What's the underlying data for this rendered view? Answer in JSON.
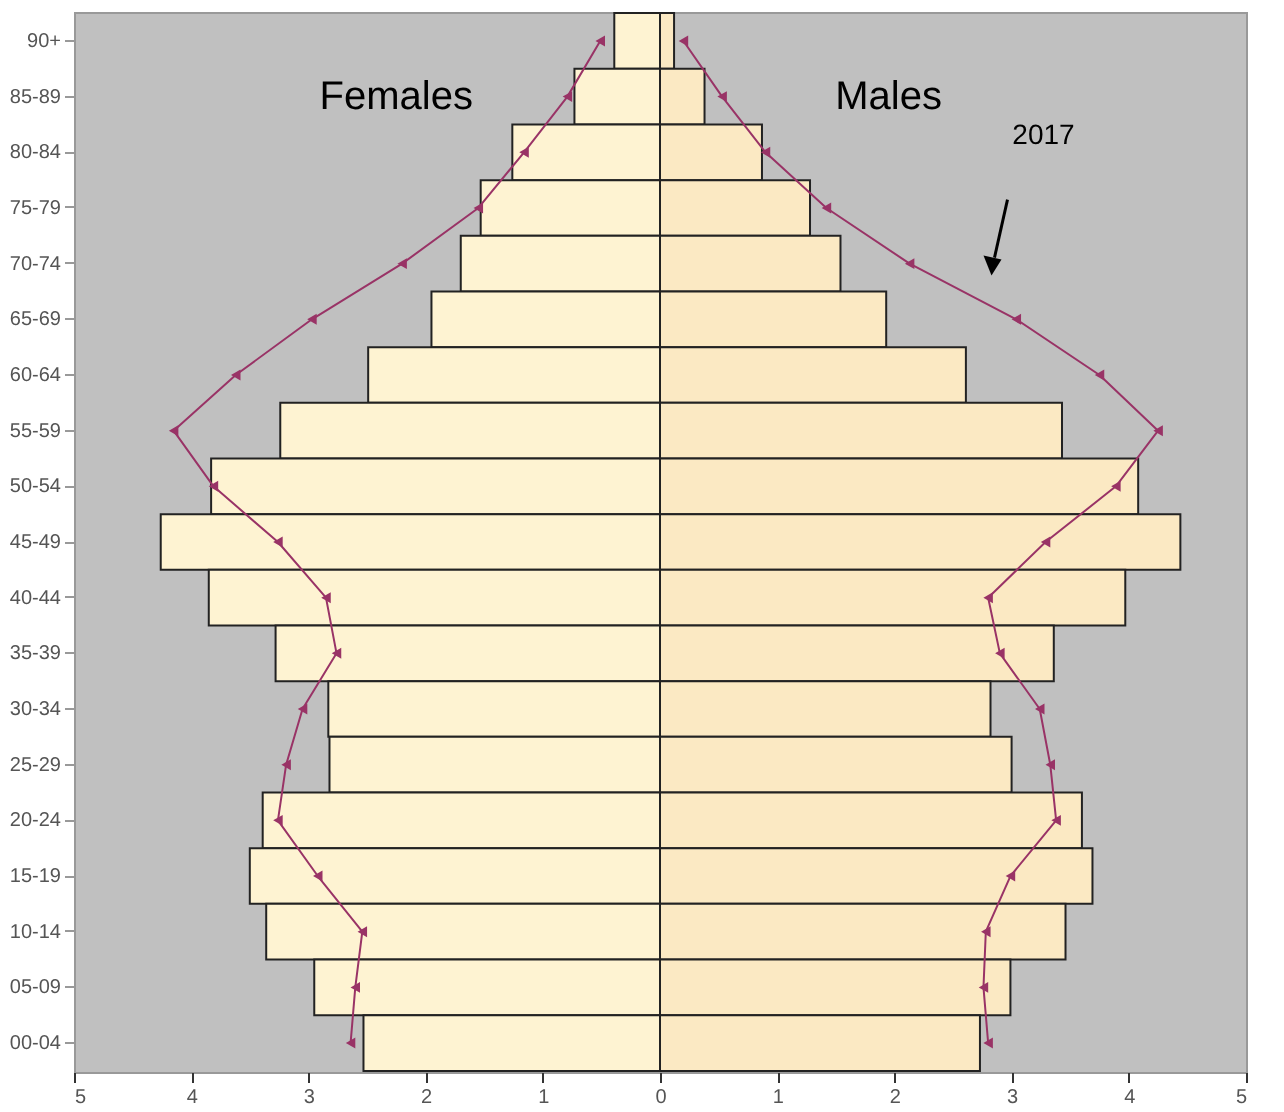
{
  "chart_data": {
    "type": "bar",
    "orientation": "horizontal",
    "categories": [
      "90+",
      "85-89",
      "80-84",
      "75-79",
      "70-74",
      "65-69",
      "60-64",
      "55-59",
      "50-54",
      "45-49",
      "40-44",
      "35-39",
      "30-34",
      "25-29",
      "20-24",
      "15-19",
      "10-14",
      "05-09",
      "00-04"
    ],
    "series": [
      {
        "name": "Females",
        "color": "#fef3d2",
        "values": [
          -0.39,
          -0.73,
          -1.26,
          -1.53,
          -1.7,
          -1.95,
          -2.49,
          -3.24,
          -3.83,
          -4.26,
          -3.85,
          -3.28,
          -2.83,
          -2.82,
          -3.39,
          -3.5,
          -3.36,
          -2.95,
          -2.53
        ]
      },
      {
        "name": "Males",
        "color": "#fbe9c3",
        "values": [
          0.12,
          0.38,
          0.87,
          1.28,
          1.54,
          1.93,
          2.61,
          3.43,
          4.08,
          4.44,
          3.97,
          3.36,
          2.82,
          3.0,
          3.6,
          3.69,
          3.46,
          2.99,
          2.73
        ]
      },
      {
        "type": "line",
        "color": "#993366",
        "values": [
          -0.51,
          -0.79,
          -1.16,
          -1.55,
          -2.2,
          -2.97,
          -3.62,
          -4.15,
          -3.81,
          -3.26,
          -2.85,
          -2.76,
          -3.05,
          -3.19,
          -3.26,
          -2.92,
          -2.54,
          -2.6,
          -2.64
        ]
      },
      {
        "type": "line",
        "color": "#993366",
        "values": [
          0.2,
          0.53,
          0.9,
          1.42,
          2.13,
          3.04,
          3.75,
          4.25,
          3.89,
          3.29,
          2.8,
          2.9,
          3.24,
          3.33,
          3.38,
          2.99,
          2.78,
          2.76,
          2.8
        ]
      }
    ],
    "xlim": [
      -5,
      5
    ],
    "xticks": [
      {
        "value": -5,
        "label": "5"
      },
      {
        "value": -4,
        "label": "4"
      },
      {
        "value": -3,
        "label": "3"
      },
      {
        "value": -2,
        "label": "2"
      },
      {
        "value": -1,
        "label": "1"
      },
      0,
      1,
      2,
      3,
      4,
      5
    ],
    "stacked": true,
    "marker": "triangle",
    "line_style": "solid",
    "grid": false,
    "annotations": [
      "2017"
    ]
  }
}
